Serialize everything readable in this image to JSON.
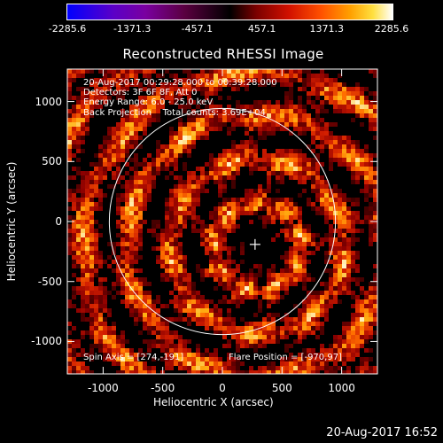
{
  "colorbar": {
    "ticks": [
      "-2285.6",
      "-1371.3",
      "-457.1",
      "457.1",
      "1371.3",
      "2285.6"
    ],
    "scale": "blue-purple-black-red-orange-yellow-white"
  },
  "chart_data": {
    "type": "heatmap",
    "title": "Reconstructed RHESSI Image",
    "xlabel": "Heliocentric X (arcsec)",
    "ylabel": "Heliocentric Y (arcsec)",
    "xlim": [
      -1300,
      1300
    ],
    "ylim": [
      -1270,
      1270
    ],
    "x_ticks": [
      "-1000",
      "-500",
      "0",
      "500",
      "1000"
    ],
    "y_ticks": [
      "1000",
      "500",
      "0",
      "-500",
      "-1000"
    ],
    "solar_limb": {
      "center": [
        0,
        0
      ],
      "radius_arcsec": 948
    },
    "flare_marker": {
      "x": 274,
      "y": -191,
      "symbol": "+"
    },
    "colorbar_range": [
      -2285.6,
      2285.6
    ],
    "annotations": {
      "time_range": "20-Aug-2017 00:29:28.000 to 00:39:28.000",
      "detectors": "Detectors: 3F 6F 8F, Att 0",
      "energy": "Energy Range: 6.0 - 25.0 keV",
      "method": "Back Projection    Total counts: 3.69E+04",
      "spin_axis": "Spin Axis = [274,-191]",
      "flare_position": "Flare Position = [-970,97]"
    }
  },
  "footer": {
    "timestamp": "20-Aug-2017 16:52"
  }
}
